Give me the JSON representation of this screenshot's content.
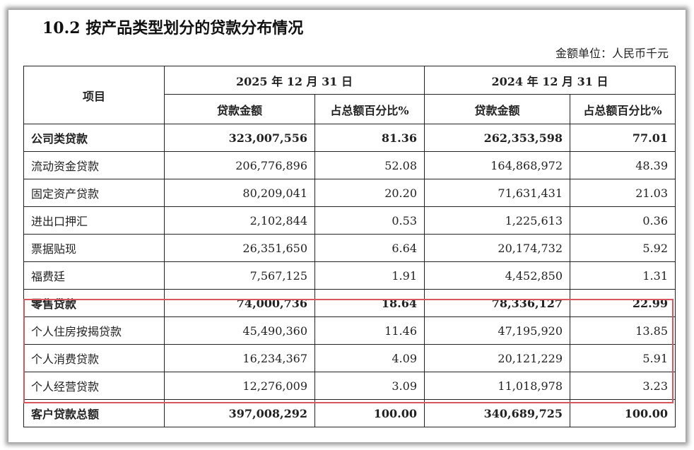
{
  "title": "10.2 按产品类型划分的贷款分布情况",
  "unit": "金额单位：人民币千元",
  "headers": {
    "item": "项目",
    "period1": "2025 年 12 月 31 日",
    "period2": "2024 年 12 月 31 日",
    "amount": "贷款金额",
    "pct": "占总额百分比%"
  },
  "rows": [
    {
      "label": "公司类贷款",
      "a1": "323,007,556",
      "p1": "81.36",
      "a2": "262,353,598",
      "p2": "77.01",
      "bold": true
    },
    {
      "label": "流动资金贷款",
      "a1": "206,776,896",
      "p1": "52.08",
      "a2": "164,868,972",
      "p2": "48.39"
    },
    {
      "label": "固定资产贷款",
      "a1": "80,209,041",
      "p1": "20.20",
      "a2": "71,631,431",
      "p2": "21.03"
    },
    {
      "label": "进出口押汇",
      "a1": "2,102,844",
      "p1": "0.53",
      "a2": "1,225,613",
      "p2": "0.36"
    },
    {
      "label": "票据贴现",
      "a1": "26,351,650",
      "p1": "6.64",
      "a2": "20,174,732",
      "p2": "5.92"
    },
    {
      "label": "福费廷",
      "a1": "7,567,125",
      "p1": "1.91",
      "a2": "4,452,850",
      "p2": "1.31"
    },
    {
      "label": "零售贷款",
      "a1": "74,000,736",
      "p1": "18.64",
      "a2": "78,336,127",
      "p2": "22.99",
      "bold": true
    },
    {
      "label": "个人住房按揭贷款",
      "a1": "45,490,360",
      "p1": "11.46",
      "a2": "47,195,920",
      "p2": "13.85"
    },
    {
      "label": "个人消费贷款",
      "a1": "16,234,367",
      "p1": "4.09",
      "a2": "20,121,229",
      "p2": "5.91"
    },
    {
      "label": "个人经营贷款",
      "a1": "12,276,009",
      "p1": "3.09",
      "a2": "11,018,978",
      "p2": "3.23"
    },
    {
      "label": "客户贷款总额",
      "a1": "397,008,292",
      "p1": "100.00",
      "a2": "340,689,725",
      "p2": "100.00",
      "bold": true
    }
  ],
  "highlight_color": "#d6565c"
}
